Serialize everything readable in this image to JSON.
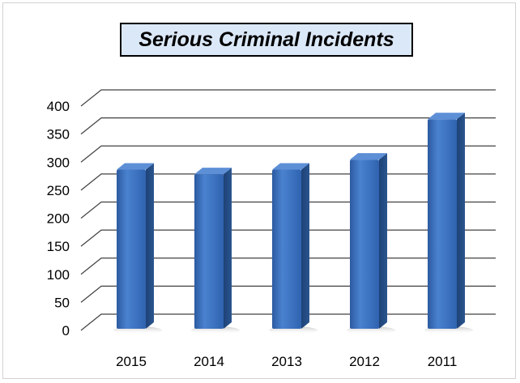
{
  "chart_data": {
    "type": "bar",
    "title": "Serious Criminal Incidents",
    "categories": [
      "2015",
      "2014",
      "2013",
      "2012",
      "2011"
    ],
    "values": [
      288,
      280,
      288,
      306,
      378
    ],
    "ylim": [
      0,
      400
    ],
    "yticks": [
      0,
      50,
      100,
      150,
      200,
      250,
      300,
      350,
      400
    ],
    "xlabel": "",
    "ylabel": "",
    "grid": true,
    "legend": "none",
    "style": "3d-column"
  },
  "colors": {
    "bar_front": "#3a6fbf",
    "bar_side": "#234b87",
    "bar_top": "#5d8fd6",
    "gridline": "#404040",
    "title_fill": "#dbe8f7"
  }
}
